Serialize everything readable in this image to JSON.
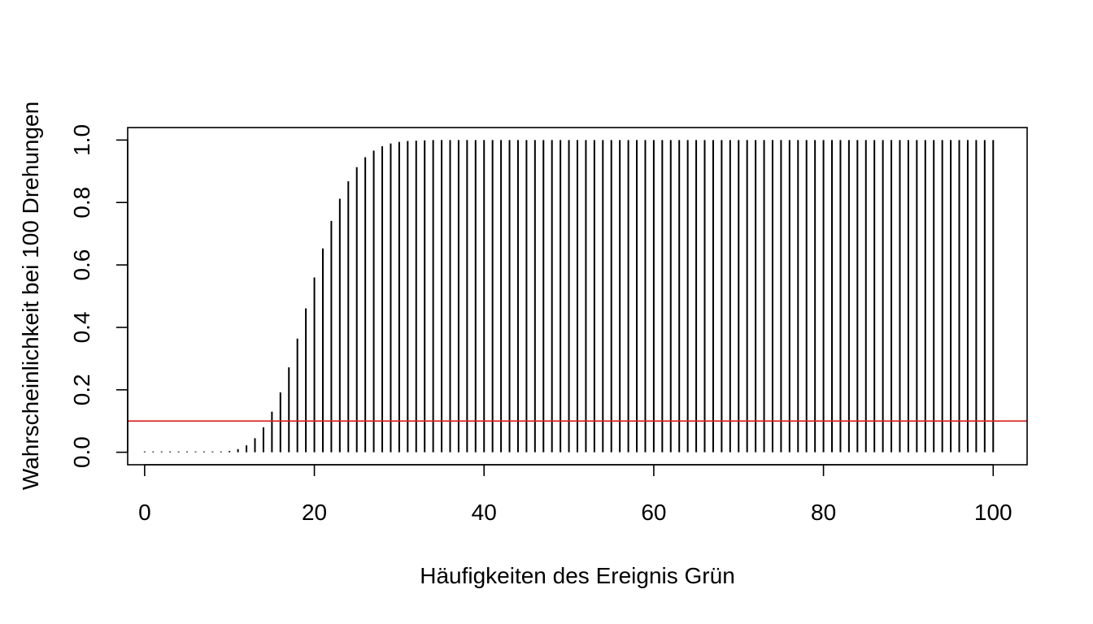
{
  "chart_data": {
    "type": "bar",
    "xlabel": "Häufigkeiten des Ereignis Grün",
    "ylabel": "Wahrscheinlichkeit bei 100 Drehungen",
    "xlim": [
      -2,
      104
    ],
    "ylim": [
      -0.04,
      1.04
    ],
    "x_ticks": [
      "0",
      "20",
      "40",
      "60",
      "80",
      "100"
    ],
    "y_ticks": [
      "0.0",
      "0.2",
      "0.4",
      "0.6",
      "0.8",
      "1.0"
    ],
    "x": [
      0,
      1,
      2,
      3,
      4,
      5,
      6,
      7,
      8,
      9,
      10,
      11,
      12,
      13,
      14,
      15,
      16,
      17,
      18,
      19,
      20,
      21,
      22,
      23,
      24,
      25,
      26,
      27,
      28,
      29,
      30,
      31,
      32,
      33,
      34,
      35,
      36,
      37,
      38,
      39,
      40,
      41,
      42,
      43,
      44,
      45,
      46,
      47,
      48,
      49,
      50,
      51,
      52,
      53,
      54,
      55,
      56,
      57,
      58,
      59,
      60,
      61,
      62,
      63,
      64,
      65,
      66,
      67,
      68,
      69,
      70,
      71,
      72,
      73,
      74,
      75,
      76,
      77,
      78,
      79,
      80,
      81,
      82,
      83,
      84,
      85,
      86,
      87,
      88,
      89,
      90,
      91,
      92,
      93,
      94,
      95,
      96,
      97,
      98,
      99,
      100
    ],
    "values": [
      0.0,
      0.0,
      0.0,
      0.0,
      0.0,
      0.0,
      0.0,
      0.0,
      0.001,
      0.002,
      0.004,
      0.01,
      0.022,
      0.045,
      0.08,
      0.13,
      0.192,
      0.272,
      0.364,
      0.461,
      0.56,
      0.653,
      0.741,
      0.812,
      0.868,
      0.913,
      0.945,
      0.966,
      0.98,
      0.989,
      0.994,
      0.997,
      0.998,
      0.999,
      1.0,
      1.0,
      1.0,
      1.0,
      1.0,
      1.0,
      1.0,
      1.0,
      1.0,
      1.0,
      1.0,
      1.0,
      1.0,
      1.0,
      1.0,
      1.0,
      1.0,
      1.0,
      1.0,
      1.0,
      1.0,
      1.0,
      1.0,
      1.0,
      1.0,
      1.0,
      1.0,
      1.0,
      1.0,
      1.0,
      1.0,
      1.0,
      1.0,
      1.0,
      1.0,
      1.0,
      1.0,
      1.0,
      1.0,
      1.0,
      1.0,
      1.0,
      1.0,
      1.0,
      1.0,
      1.0,
      1.0,
      1.0,
      1.0,
      1.0,
      1.0,
      1.0,
      1.0,
      1.0,
      1.0,
      1.0,
      1.0,
      1.0,
      1.0,
      1.0,
      1.0,
      1.0,
      1.0,
      1.0,
      1.0,
      1.0,
      1.0
    ],
    "reference_line": {
      "y": 0.1,
      "color": "#dd1c1c"
    },
    "bar_color": "#000000",
    "grid": false
  }
}
